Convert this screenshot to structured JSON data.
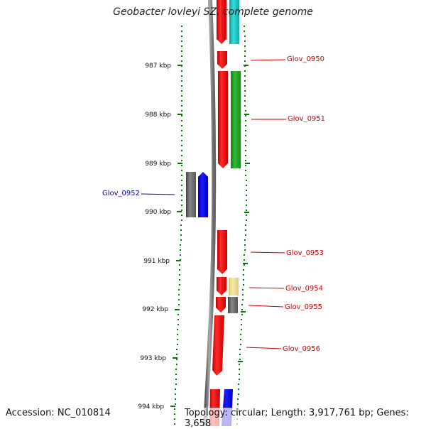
{
  "title": "Geobacter lovleyi SZ, complete genome",
  "accession": "Accession: NC_010814",
  "topology": "Topology: circular; Length: 3,917,761 bp; Genes: 3,658",
  "ticks": [
    "987 kbp",
    "988 kbp",
    "989 kbp",
    "990 kbp",
    "991 kbp",
    "992 kbp",
    "993 kbp",
    "994 kbp"
  ],
  "gene_labels": [
    {
      "text": "Glov_0950",
      "color": "#cc0000"
    },
    {
      "text": "Glov_0951",
      "color": "#cc0000"
    },
    {
      "text": "Glov_0952",
      "color": "#0000aa"
    },
    {
      "text": "Glov_0953",
      "color": "#cc0000"
    },
    {
      "text": "Glov_0954",
      "color": "#cc0000"
    },
    {
      "text": "Glov_0955",
      "color": "#cc0000"
    },
    {
      "text": "Glov_0956",
      "color": "#cc0000"
    }
  ],
  "colors": {
    "forward_gene": "#ee1111",
    "reverse_gene": "#0000ee",
    "backbone": "#888888",
    "tick": "#007700",
    "cyan_feature": "#22cccc",
    "green_feature": "#229922",
    "yellow_feature": "#eedd88",
    "gray_feature": "#666666"
  }
}
